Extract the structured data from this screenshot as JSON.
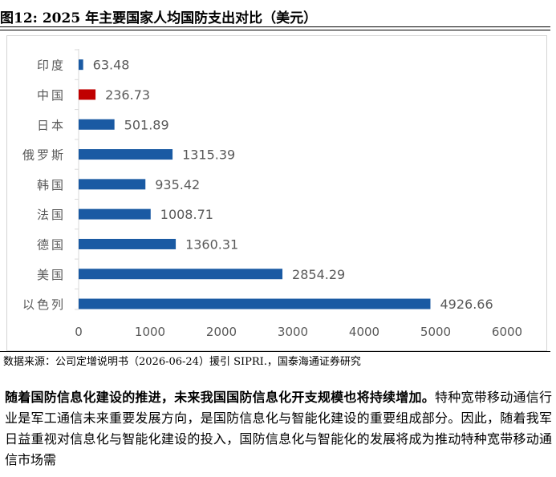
{
  "figure": {
    "title": "图12:  2025 年主要国家人均国防支出对比（美元）",
    "source": "数据来源：公司定增说明书（2026-06-24）援引 SIPRI.，国泰海通证券研究"
  },
  "body_text": {
    "lead": "随着国防信息化建设的推进，未来我国国防信息化开支规模也将持续增加。",
    "rest": "特种宽带移动通信行业是军工通信未来重要发展方向，是国防信息化与智能化建设的重要组成部分。因此，随着我军日益重视对信息化与智能化建设的投入，国防信息化与智能化的发展将成为推动特种宽带移动通信市场需"
  },
  "chart_data": {
    "type": "bar",
    "orientation": "horizontal",
    "categories": [
      "印度",
      "中国",
      "日本",
      "俄罗斯",
      "韩国",
      "法国",
      "德国",
      "美国",
      "以色列"
    ],
    "values": [
      63.48,
      236.73,
      501.89,
      1315.39,
      935.42,
      1008.71,
      1360.31,
      2854.29,
      4926.66
    ],
    "value_labels": [
      "63.48",
      "236.73",
      "501.89",
      "1315.39",
      "935.42",
      "1008.71",
      "1360.31",
      "2854.29",
      "4926.66"
    ],
    "xlim": [
      0,
      6000
    ],
    "xticks": [
      0,
      1000,
      2000,
      3000,
      4000,
      5000,
      6000
    ],
    "grid": false,
    "legend": "none",
    "colors": {
      "default_bar": "#1a5aa3",
      "highlight_bar": "#c00000",
      "axis": "#d9d9d9",
      "text": "#595959"
    },
    "highlight_category": "中国"
  }
}
